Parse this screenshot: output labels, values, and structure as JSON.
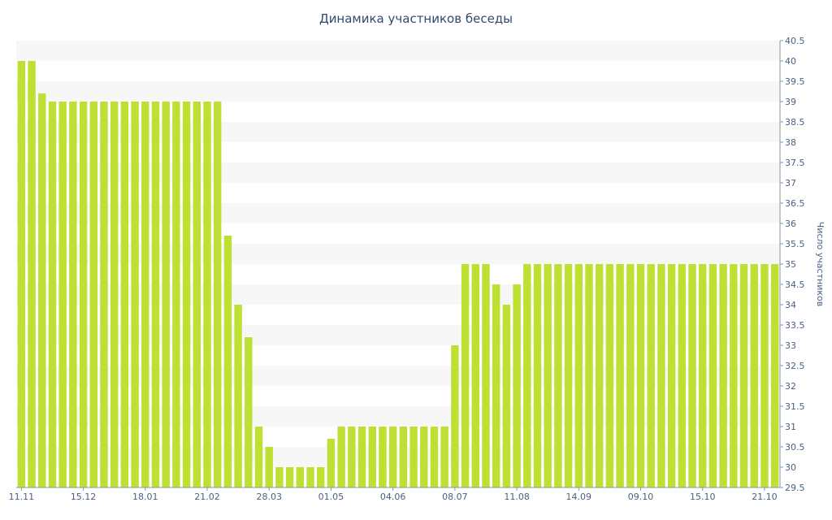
{
  "chart_data": {
    "type": "bar",
    "title": "Динамика участников беседы",
    "xlabel": "",
    "ylabel": "Число участников",
    "ylim": [
      29.5,
      40.5
    ],
    "y_ticks": [
      "29.5",
      "30",
      "30.5",
      "31",
      "31.5",
      "32",
      "32.5",
      "33",
      "33.5",
      "34",
      "34.5",
      "35",
      "35.5",
      "36",
      "36.5",
      "37",
      "37.5",
      "38",
      "38.5",
      "39",
      "39.5",
      "40",
      "40.5"
    ],
    "x_tick_labels": [
      "11.11",
      "15.12",
      "18.01",
      "21.02",
      "28.03",
      "01.05",
      "04.06",
      "08.07",
      "11.08",
      "14.09",
      "09.10",
      "15.10",
      "21.10"
    ],
    "x_tick_bar_index": [
      0,
      6,
      12,
      18,
      24,
      30,
      36,
      42,
      48,
      54,
      60,
      66,
      72
    ],
    "y_axis_position": "right",
    "grid": "horizontal bands",
    "colors": {
      "bar": "#bde032",
      "band": "#f7f7f7",
      "axis": "#8a94ab",
      "text": "#4a5f86",
      "title": "#33496e"
    },
    "values": [
      40,
      40,
      39.2,
      39,
      39,
      39,
      39,
      39,
      39,
      39,
      39,
      39,
      39,
      39,
      39,
      39,
      39,
      39,
      39,
      39,
      35.7,
      34,
      33.2,
      31,
      30.5,
      30,
      30,
      30,
      30,
      30,
      30.7,
      31,
      31,
      31,
      31,
      31,
      31,
      31,
      31,
      31,
      31,
      31,
      33,
      35,
      35,
      35,
      34.5,
      34,
      34.5,
      35,
      35,
      35,
      35,
      35,
      35,
      35,
      35,
      35,
      35,
      35,
      35,
      35,
      35,
      35,
      35,
      35,
      35,
      35,
      35,
      35,
      35,
      35,
      35,
      35
    ]
  }
}
